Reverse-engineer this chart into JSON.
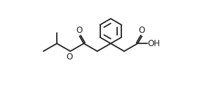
{
  "background_color": "#ffffff",
  "line_color": "#222222",
  "line_width": 1.3,
  "font_size": 8.5,
  "fig_width": 2.98,
  "fig_height": 1.53,
  "dpi": 100,
  "xlim": [
    0,
    10
  ],
  "ylim": [
    0,
    5.13
  ]
}
